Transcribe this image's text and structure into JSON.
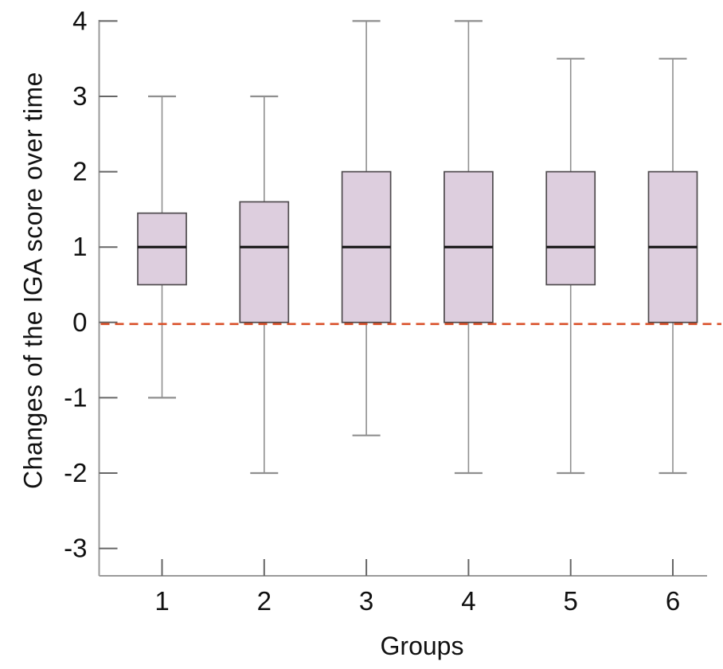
{
  "chart_data": {
    "type": "box",
    "title": "",
    "xlabel": "Groups",
    "ylabel": "Changes of the IGA score over time",
    "categories": [
      "1",
      "2",
      "3",
      "4",
      "5",
      "6"
    ],
    "y_tick_values": [
      4,
      3,
      2,
      1,
      0,
      -1,
      -2,
      -3
    ],
    "y_tick_labels": [
      "4",
      "3",
      "2",
      "1",
      "0",
      "-1",
      "-2",
      "-3"
    ],
    "ylim": [
      -3.4,
      4.0
    ],
    "grid": false,
    "legend": "none",
    "reference_line": {
      "value": 0,
      "style": "dashed"
    },
    "series": [
      {
        "group": "1",
        "whisker_low": -1.0,
        "q1": 0.5,
        "median": 1.0,
        "q3": 1.45,
        "whisker_high": 3.0
      },
      {
        "group": "2",
        "whisker_low": -2.0,
        "q1": 0.0,
        "median": 1.0,
        "q3": 1.6,
        "whisker_high": 3.0
      },
      {
        "group": "3",
        "whisker_low": -1.5,
        "q1": 0.0,
        "median": 1.0,
        "q3": 2.0,
        "whisker_high": 4.0
      },
      {
        "group": "4",
        "whisker_low": -2.0,
        "q1": 0.0,
        "median": 1.0,
        "q3": 2.0,
        "whisker_high": 4.0
      },
      {
        "group": "5",
        "whisker_low": -2.0,
        "q1": 0.5,
        "median": 1.0,
        "q3": 2.0,
        "whisker_high": 3.5
      },
      {
        "group": "6",
        "whisker_low": -2.0,
        "q1": 0.0,
        "median": 1.0,
        "q3": 2.0,
        "whisker_high": 3.5
      }
    ],
    "colors": {
      "box_fill": "#ddcede",
      "box_border": "#4f4b4e",
      "median": "#141414",
      "whisker": "#8f8f8f",
      "axis": "#9a9a9a",
      "tick": "#666666",
      "text": "#111111",
      "reference": "#d94f28",
      "background": "#ffffff"
    }
  }
}
